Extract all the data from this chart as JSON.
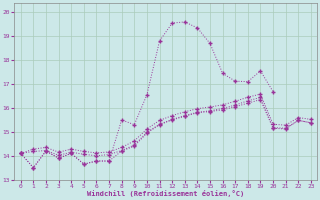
{
  "background_color": "#cce8e8",
  "grid_color": "#aaccbb",
  "line_color": "#993399",
  "xlim": [
    -0.5,
    23.5
  ],
  "ylim": [
    13.0,
    20.4
  ],
  "yticks": [
    13,
    14,
    15,
    16,
    17,
    18,
    19,
    20
  ],
  "xticks": [
    0,
    1,
    2,
    3,
    4,
    5,
    6,
    7,
    8,
    9,
    10,
    11,
    12,
    13,
    14,
    15,
    16,
    17,
    18,
    19,
    20,
    21,
    22,
    23
  ],
  "xlabel": "Windchill (Refroidissement éolien,°C)",
  "s1_x": [
    0,
    1,
    2,
    3,
    4,
    5,
    6,
    7,
    8,
    9,
    10,
    11,
    12,
    13,
    14,
    15,
    16,
    17,
    18,
    19,
    20,
    21,
    22,
    23
  ],
  "s1_y": [
    14.1,
    13.5,
    14.2,
    13.9,
    14.1,
    13.65,
    13.78,
    13.78,
    14.2,
    14.4,
    14.95,
    15.3,
    15.5,
    15.65,
    15.8,
    15.85,
    15.92,
    16.05,
    16.2,
    16.35,
    15.15,
    15.12,
    15.48,
    15.38
  ],
  "s2_x": [
    0,
    1,
    2,
    3,
    4,
    5,
    6,
    7,
    8,
    9,
    10,
    11,
    12,
    13,
    14,
    15,
    16,
    17,
    18,
    19,
    20
  ],
  "s2_y": [
    14.1,
    13.5,
    14.2,
    13.9,
    14.1,
    13.65,
    13.78,
    13.78,
    15.5,
    15.3,
    16.55,
    18.8,
    19.55,
    19.6,
    19.35,
    18.7,
    17.45,
    17.12,
    17.1,
    17.55,
    16.68
  ],
  "s3_x": [
    0,
    1,
    2,
    3,
    4,
    5,
    6,
    7,
    8,
    9,
    10,
    11,
    12,
    13,
    14,
    15,
    16,
    17,
    18,
    19,
    20,
    21,
    22,
    23
  ],
  "s3_y": [
    14.1,
    14.18,
    14.22,
    14.02,
    14.15,
    14.06,
    14.0,
    14.05,
    14.22,
    14.45,
    14.98,
    15.32,
    15.52,
    15.68,
    15.82,
    15.88,
    15.98,
    16.12,
    16.3,
    16.44,
    15.18,
    15.15,
    15.48,
    15.38
  ],
  "s4_x": [
    0,
    1,
    2,
    3,
    4,
    5,
    6,
    7,
    8,
    9,
    10,
    11,
    12,
    13,
    14,
    15,
    16,
    17,
    18,
    19,
    20,
    21,
    22,
    23
  ],
  "s4_y": [
    14.1,
    14.28,
    14.35,
    14.15,
    14.28,
    14.18,
    14.12,
    14.16,
    14.35,
    14.62,
    15.12,
    15.48,
    15.68,
    15.84,
    15.97,
    16.04,
    16.13,
    16.28,
    16.45,
    16.58,
    15.32,
    15.28,
    15.6,
    15.52
  ]
}
